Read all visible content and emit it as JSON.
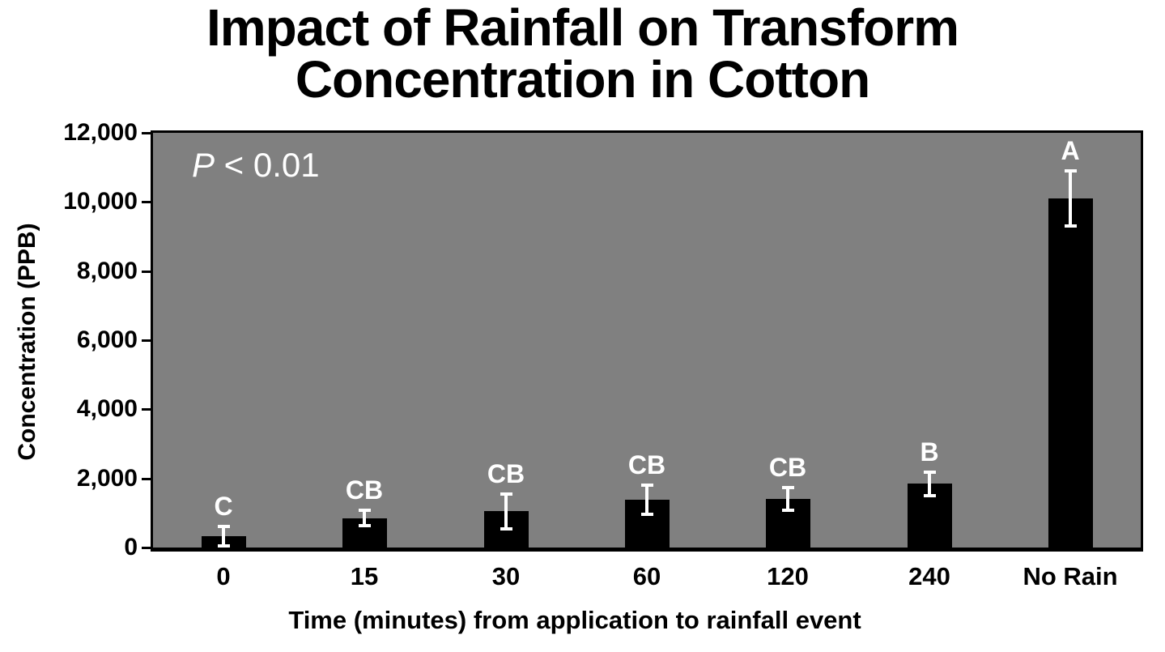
{
  "header": {
    "title_line1": "Impact of Rainfall on Transform",
    "title_line2": "Concentration in Cotton"
  },
  "chart_data": {
    "type": "bar",
    "title": "Impact of Rainfall on Transform Concentration in Cotton",
    "xlabel": "Time (minutes) from application to rainfall event",
    "ylabel": "Concentration (PPB)",
    "categories": [
      "0",
      "15",
      "30",
      "60",
      "120",
      "240",
      "No Rain"
    ],
    "values": [
      330,
      850,
      1050,
      1380,
      1400,
      1850,
      10100
    ],
    "error_bars": [
      290,
      220,
      500,
      430,
      330,
      340,
      800
    ],
    "significance_letters": [
      "C",
      "CB",
      "CB",
      "CB",
      "CB",
      "B",
      "A"
    ],
    "annotation": {
      "italic_part": "P",
      "rest": " < 0.01"
    },
    "ylim": [
      0,
      12000
    ],
    "yticks": [
      0,
      2000,
      4000,
      6000,
      8000,
      10000,
      12000
    ],
    "ytick_labels": [
      "0",
      "2,000",
      "4,000",
      "6,000",
      "8,000",
      "10,000",
      "12,000"
    ],
    "grid": false,
    "legend": false,
    "colors": {
      "plot_background": "#808080",
      "bar": "#000000",
      "error_bar": "#FFFFFF",
      "letters": "#FFFFFF",
      "text": "#000000",
      "page_background": "#FFFFFF"
    }
  }
}
